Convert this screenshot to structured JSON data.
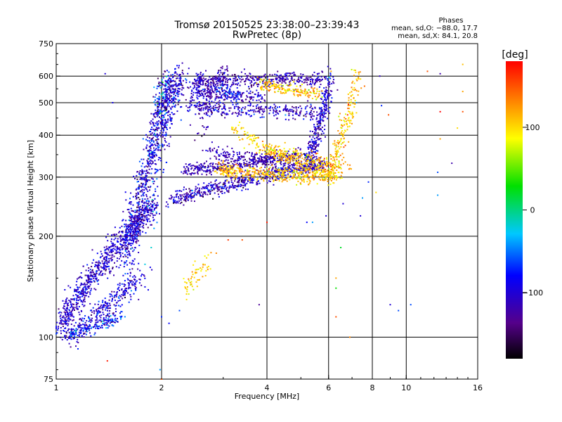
{
  "chart_data": {
    "type": "scatter",
    "title": "Tromsø 20150525 23:38:00–23:39:43",
    "subtitle": "RwPretec (8p)",
    "phase_stats": {
      "header": "Phases",
      "line_o": "mean, sd,O: −88.0, 17.7",
      "line_x": "mean, sd,X:  84.1, 20.8"
    },
    "xlabel": "Frequency [MHz]",
    "ylabel": "Stationary phase Virtual Height [km]",
    "x_scale": "log",
    "y_scale": "log",
    "xlim": [
      1,
      16
    ],
    "ylim": [
      75,
      750
    ],
    "x_ticks": [
      1,
      2,
      4,
      6,
      8,
      10,
      16
    ],
    "x_tick_labels": [
      "1",
      "2",
      "4",
      "6",
      "8",
      "10",
      "16"
    ],
    "y_ticks": [
      75,
      100,
      200,
      300,
      400,
      500,
      600,
      750
    ],
    "y_tick_labels": [
      "75",
      "100",
      "200",
      "300",
      "400",
      "500",
      "600",
      "750"
    ],
    "grid_x": [
      2,
      4,
      6,
      8,
      10
    ],
    "grid_y": [
      100,
      200,
      300,
      400,
      500,
      600
    ],
    "colorbar": {
      "label": "[deg]",
      "range": [
        -180,
        180
      ],
      "ticks": [
        100,
        0,
        -100
      ],
      "tick_labels": [
        "100",
        "0",
        "−100"
      ]
    },
    "traces": [
      {
        "kind": "sweep",
        "x0": 1.02,
        "x1": 1.9,
        "y0": 103,
        "y1": 250,
        "curv": 0.8,
        "noise": 0.045,
        "n": 900,
        "phase": -105,
        "pnoise": 22
      },
      {
        "kind": "sweep",
        "x0": 1.1,
        "x1": 1.75,
        "y0": 100,
        "y1": 150,
        "curv": 1.0,
        "noise": 0.04,
        "n": 300,
        "phase": -95,
        "pnoise": 25
      },
      {
        "kind": "sweep",
        "x0": 1.6,
        "x1": 2.2,
        "y0": 150,
        "y1": 610,
        "curv": 0.7,
        "noise": 0.05,
        "n": 700,
        "phase": -100,
        "pnoise": 28
      },
      {
        "kind": "sweep",
        "x0": 1.85,
        "x1": 2.05,
        "y0": 120,
        "y1": 600,
        "curv": 0.3,
        "noise": 0.04,
        "n": 160,
        "phase": -75,
        "pnoise": 40
      },
      {
        "kind": "sweep",
        "x0": 2.0,
        "x1": 2.3,
        "y0": 300,
        "y1": 600,
        "curv": 0.5,
        "noise": 0.05,
        "n": 120,
        "phase": -95,
        "pnoise": 25
      },
      {
        "kind": "sweep",
        "x0": 2.1,
        "x1": 5.8,
        "y0": 255,
        "y1": 330,
        "curv": 0.9,
        "noise": 0.025,
        "n": 600,
        "phase": -110,
        "pnoise": 25
      },
      {
        "kind": "sweep",
        "x0": 2.3,
        "x1": 5.0,
        "y0": 315,
        "y1": 350,
        "curv": 1.4,
        "noise": 0.02,
        "n": 350,
        "phase": -115,
        "pnoise": 18
      },
      {
        "kind": "sweep",
        "x0": 2.7,
        "x1": 5.5,
        "y0": 370,
        "y1": 330,
        "curv": 0.4,
        "noise": 0.025,
        "n": 220,
        "phase": -115,
        "pnoise": 15
      },
      {
        "kind": "sweep",
        "x0": 5.2,
        "x1": 6.1,
        "y0": 330,
        "y1": 600,
        "curv": 1.2,
        "noise": 0.035,
        "n": 300,
        "phase": -105,
        "pnoise": 25
      },
      {
        "kind": "sweep",
        "x0": 2.5,
        "x1": 5.8,
        "y0": 575,
        "y1": 590,
        "curv": 0.5,
        "noise": 0.025,
        "n": 380,
        "phase": -115,
        "pnoise": 20
      },
      {
        "kind": "sweep",
        "x0": 2.5,
        "x1": 5.5,
        "y0": 490,
        "y1": 470,
        "curv": 0.5,
        "noise": 0.025,
        "n": 280,
        "phase": -110,
        "pnoise": 25
      },
      {
        "kind": "sweep",
        "x0": 2.5,
        "x1": 4.0,
        "y0": 540,
        "y1": 520,
        "curv": 0.5,
        "noise": 0.02,
        "n": 160,
        "phase": -110,
        "pnoise": 20
      },
      {
        "kind": "sweep",
        "x0": 2.6,
        "x1": 3.0,
        "y0": 300,
        "y1": 600,
        "curv": 0.2,
        "noise": 0.05,
        "n": 140,
        "phase": -115,
        "pnoise": 18
      },
      {
        "kind": "sweep",
        "x0": 2.4,
        "x1": 2.6,
        "y0": 450,
        "y1": 600,
        "curv": 0.5,
        "noise": 0.03,
        "n": 70,
        "phase": -100,
        "pnoise": 20
      },
      {
        "kind": "sweep",
        "x0": 2.9,
        "x1": 6.2,
        "y0": 320,
        "y1": 300,
        "curv": 0.5,
        "noise": 0.025,
        "n": 380,
        "phase": 110,
        "pnoise": 20
      },
      {
        "kind": "sweep",
        "x0": 3.2,
        "x1": 6.5,
        "y0": 440,
        "y1": 300,
        "curv": 0.6,
        "noise": 0.025,
        "n": 220,
        "phase": 105,
        "pnoise": 20
      },
      {
        "kind": "sweep",
        "x0": 4.0,
        "x1": 6.8,
        "y0": 360,
        "y1": 320,
        "curv": 1.0,
        "noise": 0.03,
        "n": 170,
        "phase": 110,
        "pnoise": 20
      },
      {
        "kind": "sweep",
        "x0": 6.0,
        "x1": 7.3,
        "y0": 300,
        "y1": 600,
        "curv": 1.2,
        "noise": 0.035,
        "n": 200,
        "phase": 110,
        "pnoise": 20
      },
      {
        "kind": "sweep",
        "x0": 3.8,
        "x1": 5.7,
        "y0": 580,
        "y1": 530,
        "curv": 0.6,
        "noise": 0.02,
        "n": 170,
        "phase": 105,
        "pnoise": 20
      },
      {
        "kind": "sweep",
        "x0": 2.35,
        "x1": 2.7,
        "y0": 140,
        "y1": 170,
        "curv": 1.0,
        "noise": 0.04,
        "n": 60,
        "phase": 100,
        "pnoise": 15
      },
      {
        "kind": "sweep",
        "x0": 1.08,
        "x1": 1.55,
        "y0": 102,
        "y1": 115,
        "curv": 1.0,
        "noise": 0.02,
        "n": 150,
        "phase": -80,
        "pnoise": 35
      },
      {
        "kind": "sweep",
        "x0": 2.9,
        "x1": 3.3,
        "y0": 560,
        "y1": 520,
        "curv": 1.0,
        "noise": 0.02,
        "n": 50,
        "phase": -75,
        "pnoise": 25
      }
    ],
    "scatter_points": [
      {
        "x": 1.38,
        "y": 610,
        "phase": -100
      },
      {
        "x": 1.45,
        "y": 500,
        "phase": -90
      },
      {
        "x": 1.6,
        "y": 240,
        "phase": -120
      },
      {
        "x": 1.4,
        "y": 85,
        "phase": 170
      },
      {
        "x": 1.98,
        "y": 80,
        "phase": -40
      },
      {
        "x": 2.0,
        "y": 75,
        "phase": 150
      },
      {
        "x": 3.4,
        "y": 195,
        "phase": 150
      },
      {
        "x": 3.1,
        "y": 195,
        "phase": 160
      },
      {
        "x": 4.0,
        "y": 220,
        "phase": 170
      },
      {
        "x": 3.8,
        "y": 125,
        "phase": -130
      },
      {
        "x": 5.4,
        "y": 220,
        "phase": -40
      },
      {
        "x": 5.9,
        "y": 230,
        "phase": -100
      },
      {
        "x": 6.3,
        "y": 150,
        "phase": 120
      },
      {
        "x": 6.3,
        "y": 140,
        "phase": 30
      },
      {
        "x": 6.5,
        "y": 185,
        "phase": 20
      },
      {
        "x": 6.3,
        "y": 115,
        "phase": 150
      },
      {
        "x": 7.4,
        "y": 230,
        "phase": -100
      },
      {
        "x": 7.5,
        "y": 260,
        "phase": -40
      },
      {
        "x": 7.8,
        "y": 290,
        "phase": -70
      },
      {
        "x": 8.2,
        "y": 270,
        "phase": 100
      },
      {
        "x": 8.4,
        "y": 600,
        "phase": -110
      },
      {
        "x": 8.5,
        "y": 490,
        "phase": -70
      },
      {
        "x": 8.9,
        "y": 460,
        "phase": 150
      },
      {
        "x": 9.0,
        "y": 125,
        "phase": -100
      },
      {
        "x": 9.5,
        "y": 120,
        "phase": -60
      },
      {
        "x": 10.3,
        "y": 125,
        "phase": -60
      },
      {
        "x": 11.5,
        "y": 620,
        "phase": 150
      },
      {
        "x": 12.5,
        "y": 610,
        "phase": -120
      },
      {
        "x": 12.5,
        "y": 470,
        "phase": 180
      },
      {
        "x": 12.5,
        "y": 390,
        "phase": 120
      },
      {
        "x": 12.3,
        "y": 310,
        "phase": -60
      },
      {
        "x": 12.3,
        "y": 265,
        "phase": -40
      },
      {
        "x": 13.5,
        "y": 330,
        "phase": -120
      },
      {
        "x": 14.5,
        "y": 650,
        "phase": 110
      },
      {
        "x": 14.5,
        "y": 470,
        "phase": 150
      },
      {
        "x": 14.5,
        "y": 540,
        "phase": 120
      },
      {
        "x": 14.0,
        "y": 420,
        "phase": 100
      },
      {
        "x": 7.2,
        "y": 500,
        "phase": -40
      },
      {
        "x": 7.6,
        "y": 560,
        "phase": 140
      },
      {
        "x": 6.8,
        "y": 460,
        "phase": 160
      },
      {
        "x": 6.6,
        "y": 250,
        "phase": -100
      },
      {
        "x": 6.1,
        "y": 620,
        "phase": 120
      },
      {
        "x": 5.2,
        "y": 220,
        "phase": -80
      },
      {
        "x": 6.9,
        "y": 100,
        "phase": 130
      },
      {
        "x": 2.25,
        "y": 120,
        "phase": -60
      },
      {
        "x": 2.1,
        "y": 110,
        "phase": -80
      },
      {
        "x": 2.0,
        "y": 115,
        "phase": -70
      }
    ]
  }
}
